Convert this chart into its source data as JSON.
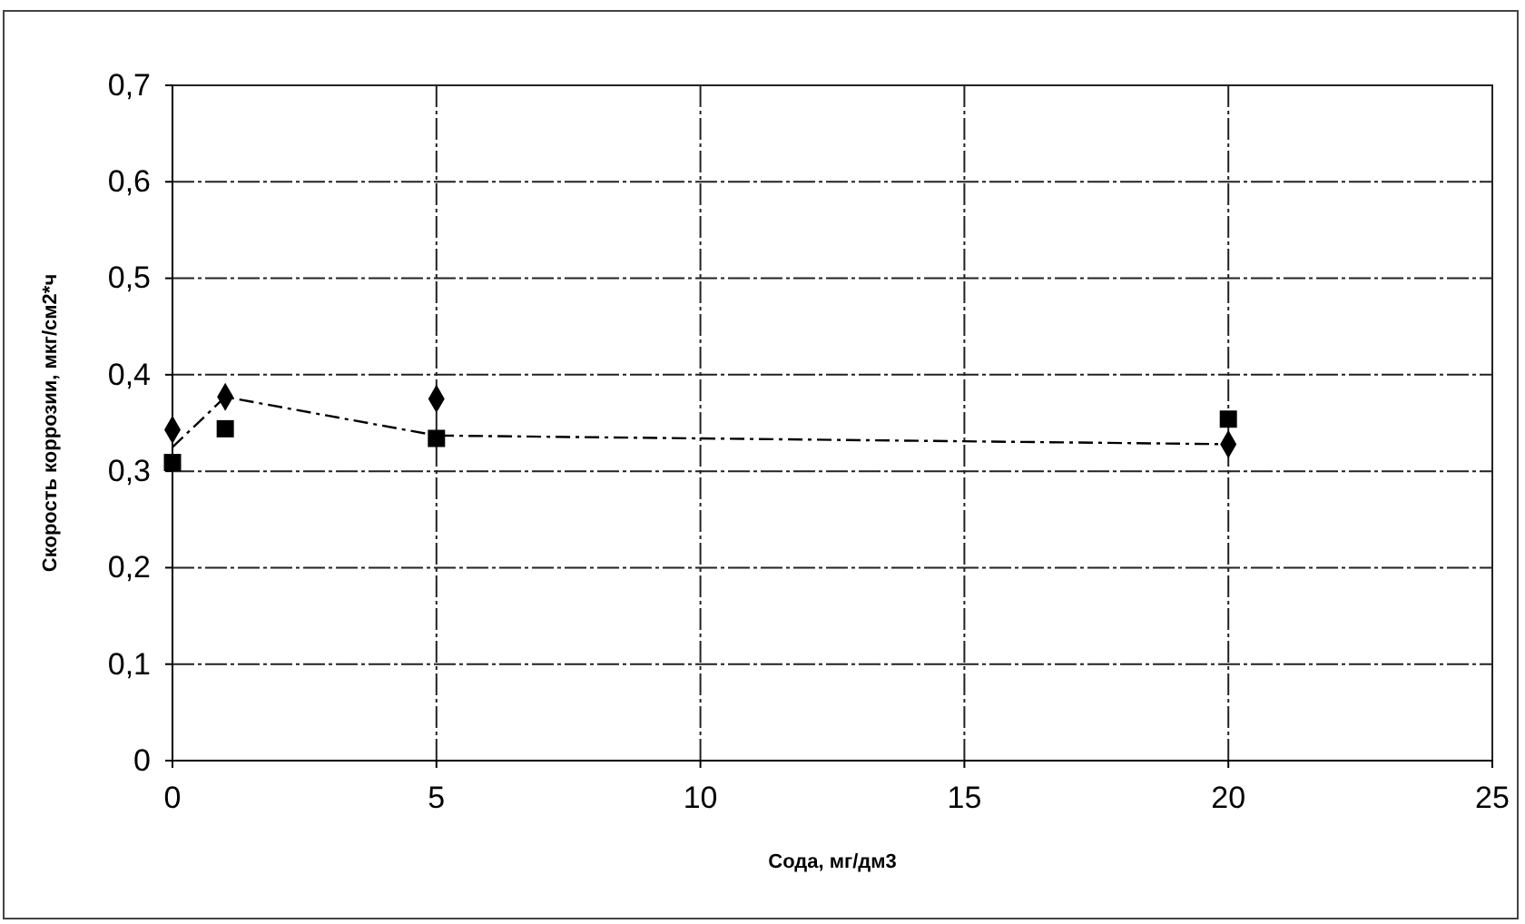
{
  "chart_data": {
    "type": "scatter",
    "xlabel": "Сода, мг/дм3",
    "ylabel": "Скорость коррозии, мкг/см2*ч",
    "xlim": [
      0,
      25
    ],
    "xticks": [
      0,
      5,
      10,
      15,
      20,
      25
    ],
    "ylim": [
      0,
      0.7
    ],
    "yticks": [
      {
        "value": 0,
        "label": "0"
      },
      {
        "value": 0.1,
        "label": "0,1"
      },
      {
        "value": 0.2,
        "label": "0,2"
      },
      {
        "value": 0.3,
        "label": "0,3"
      },
      {
        "value": 0.4,
        "label": "0,4"
      },
      {
        "value": 0.5,
        "label": "0,5"
      },
      {
        "value": 0.6,
        "label": "0,6"
      },
      {
        "value": 0.7,
        "label": "0,7"
      }
    ],
    "grid": true,
    "series": [
      {
        "type": "line",
        "color": "#000000",
        "marker": "none",
        "line_style": "dashed",
        "x": [
          0,
          1,
          5,
          20
        ],
        "values": [
          0.325,
          0.377,
          0.337,
          0.328
        ]
      },
      {
        "color": "#000000",
        "marker": "diamond",
        "x": [
          0,
          1,
          5,
          20
        ],
        "values": [
          0.343,
          0.377,
          0.375,
          0.328
        ]
      },
      {
        "color": "#000000",
        "marker": "square",
        "x": [
          0,
          1,
          5,
          20
        ],
        "values": [
          0.309,
          0.344,
          0.334,
          0.354
        ]
      }
    ]
  }
}
